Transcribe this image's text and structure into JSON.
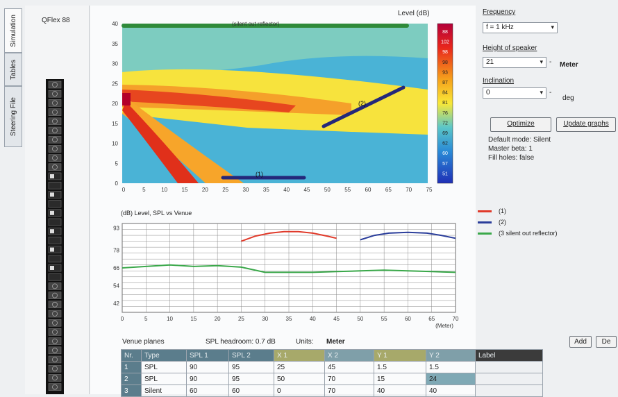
{
  "tabs": [
    "Simulation",
    "Tables",
    "Steering File"
  ],
  "left_panel": {
    "device_label": "QFlex 88"
  },
  "heatmap": {
    "title": "Level (dB)",
    "top_label": "(silent out reflector)",
    "x_ticks": [
      "0",
      "5",
      "10",
      "15",
      "20",
      "25",
      "30",
      "35",
      "40",
      "45",
      "50",
      "55",
      "60",
      "65",
      "70",
      "75"
    ],
    "y_ticks": [
      "40",
      "35",
      "30",
      "25",
      "20",
      "15",
      "10",
      "5",
      "0"
    ],
    "scale_labels": [
      "88",
      "102",
      "98",
      "98",
      "93",
      "87",
      "84",
      "81",
      "76",
      "72",
      "69",
      "62",
      "60",
      "57",
      "51"
    ],
    "plane_labels": [
      "(2)",
      "(1)"
    ]
  },
  "right_panel": {
    "frequency_label": "Frequency",
    "frequency_value": "f = 1 kHz",
    "height_label": "Height of speaker",
    "height_value": "21",
    "height_unit": "Meter",
    "inclination_label": "Inclination",
    "inclination_value": "0",
    "inclination_unit": "deg",
    "optimize_button": "Optimize",
    "update_button": "Update graphs",
    "info_lines": [
      "Default mode: Silent",
      "Master beta: 1",
      "Fill holes: false"
    ]
  },
  "chart_data": {
    "type": "line",
    "title": "(dB) Level, SPL vs Venue",
    "xlabel": "(Meter)",
    "x_ticks": [
      0,
      5,
      10,
      15,
      20,
      25,
      30,
      35,
      40,
      45,
      50,
      55,
      60,
      65,
      70
    ],
    "y_ticks": [
      93,
      78,
      66,
      54,
      42
    ],
    "xlim": [
      0,
      70
    ],
    "ylim": [
      36,
      96
    ],
    "grid": true,
    "legend_position": "right",
    "series": [
      {
        "name": "(1)",
        "color": "#e03a2a",
        "x": [
          25,
          28,
          31,
          34,
          37,
          40,
          43,
          45
        ],
        "y": [
          84,
          87.5,
          89.5,
          90.5,
          90.5,
          89.5,
          87.5,
          86
        ]
      },
      {
        "name": "(2)",
        "color": "#2a3d9a",
        "x": [
          50,
          53,
          56,
          60,
          64,
          67,
          70
        ],
        "y": [
          85,
          88,
          89.5,
          90,
          89.5,
          88,
          86
        ]
      },
      {
        "name": "(3 silent out reflector)",
        "color": "#3aa84a",
        "x": [
          0,
          5,
          10,
          15,
          20,
          25,
          30,
          35,
          40,
          45,
          50,
          55,
          60,
          65,
          70
        ],
        "y": [
          66,
          67,
          68,
          67,
          67.5,
          66.5,
          63,
          63,
          63,
          63.5,
          64,
          64.5,
          64,
          63.5,
          63
        ]
      }
    ]
  },
  "venue": {
    "title": "Venue planes",
    "headroom": "SPL headroom: 0.7 dB",
    "units_label": "Units:",
    "units_value": "Meter",
    "add_button": "Add",
    "del_button": "De",
    "columns": [
      "Nr.",
      "Type",
      "SPL 1",
      "SPL 2",
      "X 1",
      "X 2",
      "Y 1",
      "Y 2",
      "Label"
    ],
    "rows": [
      [
        "1",
        "SPL",
        "90",
        "95",
        "25",
        "45",
        "1.5",
        "1.5",
        ""
      ],
      [
        "2",
        "SPL",
        "90",
        "95",
        "50",
        "70",
        "15",
        "24",
        ""
      ],
      [
        "3",
        "Silent",
        "60",
        "60",
        "0",
        "70",
        "40",
        "40",
        ""
      ]
    ]
  }
}
